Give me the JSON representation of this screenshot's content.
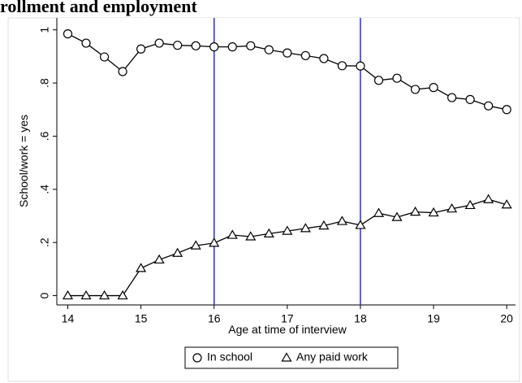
{
  "chart_data": {
    "type": "line",
    "title": "rollment and employment",
    "x_label": "Age at time of interview",
    "y_label": "School/work = yes",
    "x": [
      14,
      14.25,
      14.5,
      14.75,
      15,
      15.25,
      15.5,
      15.75,
      16,
      16.25,
      16.5,
      16.75,
      17,
      17.25,
      17.5,
      17.75,
      18,
      18.25,
      18.5,
      18.75,
      19,
      19.25,
      19.5,
      19.75,
      20
    ],
    "series": [
      {
        "name": "In school",
        "color": "#000000",
        "marker": "circle",
        "values": [
          0.985,
          0.95,
          0.898,
          0.843,
          0.928,
          0.95,
          0.942,
          0.94,
          0.936,
          0.936,
          0.94,
          0.925,
          0.913,
          0.903,
          0.892,
          0.865,
          0.864,
          0.81,
          0.818,
          0.776,
          0.783,
          0.745,
          0.738,
          0.714,
          0.7
        ]
      },
      {
        "name": "Any paid work",
        "color": "#000000",
        "marker": "triangle",
        "values": [
          0,
          0,
          0,
          0,
          0.103,
          0.135,
          0.16,
          0.188,
          0.198,
          0.228,
          0.222,
          0.233,
          0.243,
          0.253,
          0.263,
          0.28,
          0.265,
          0.31,
          0.295,
          0.315,
          0.312,
          0.327,
          0.34,
          0.362,
          0.342
        ]
      }
    ],
    "vlines": [
      16,
      18
    ],
    "vline_color": "#2b2bd1",
    "xlim": [
      13.85,
      20.12
    ],
    "xticks": [
      14,
      15,
      16,
      17,
      18,
      19,
      20
    ],
    "ylim": [
      -0.035,
      1.045
    ],
    "yticks": [
      0,
      {
        "value": 0.2,
        "label": ".2"
      },
      {
        "value": 0.4,
        "label": ".4"
      },
      {
        "value": 0.6,
        "label": ".6"
      },
      {
        "value": 0.8,
        "label": ".8"
      },
      1
    ],
    "legend": "bottom"
  }
}
